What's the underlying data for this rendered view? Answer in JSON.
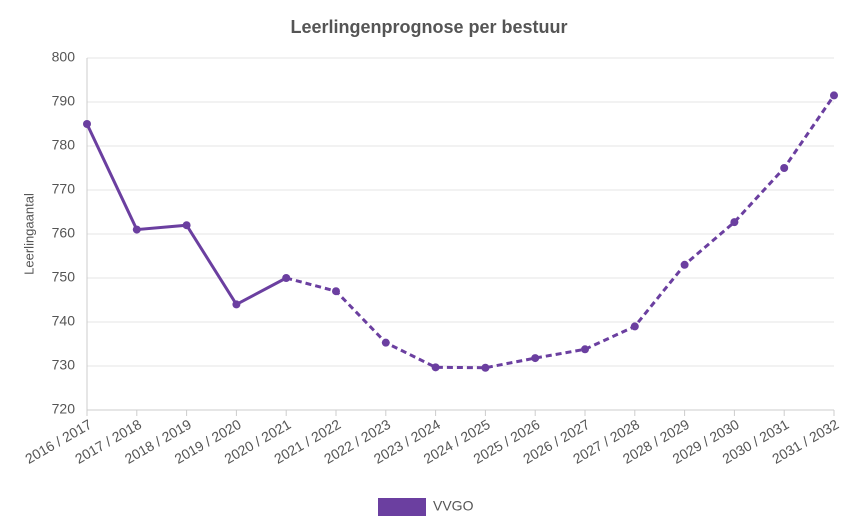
{
  "chart_data": {
    "type": "line",
    "title": "Leerlingenprognose per bestuur",
    "y_label": "Leerlingaantal",
    "categories": [
      "2016 / 2017",
      "2017 / 2018",
      "2018 / 2019",
      "2019 / 2020",
      "2020 / 2021",
      "2021 / 2022",
      "2022 / 2023",
      "2023 / 2024",
      "2024 / 2025",
      "2025 / 2026",
      "2026 / 2027",
      "2027 / 2028",
      "2028 / 2029",
      "2029 / 2030",
      "2030 / 2031",
      "2031 / 2032"
    ],
    "series": [
      {
        "name": "VVGO",
        "color": "#6b3fa0",
        "values": [
          785,
          761,
          762,
          744,
          750,
          747,
          735.3,
          729.7,
          729.6,
          731.8,
          733.8,
          739,
          753,
          762.7,
          775,
          791.5
        ]
      }
    ],
    "forecast_start": "2020 / 2021",
    "ylim": [
      720,
      800
    ],
    "yticks": [
      720,
      730,
      740,
      750,
      760,
      770,
      780,
      790,
      800
    ],
    "grid": true,
    "legend": "bottom"
  }
}
